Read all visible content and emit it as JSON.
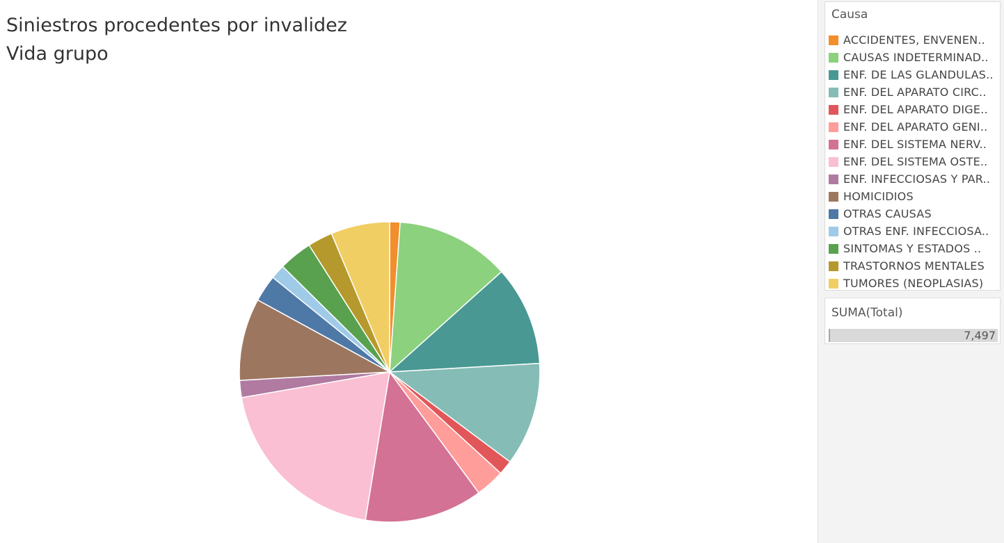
{
  "title": {
    "line1": "Siniestros procedentes por invalidez",
    "line2": "Vida grupo"
  },
  "legend": {
    "title": "Causa"
  },
  "sum_filter": {
    "title": "SUMA(Total)",
    "value": "7,497",
    "fill_fraction": 1.0
  },
  "chart_data": {
    "type": "pie",
    "title": "Siniestros procedentes por invalidez\nVida grupo",
    "total": 7497,
    "legend_position": "right",
    "slices": [
      {
        "label": "ACCIDENTES, ENVENEN..",
        "color": "#f28e2b",
        "value": 84
      },
      {
        "label": "CAUSAS INDETERMINAD..",
        "color": "#8cd17d",
        "value": 918
      },
      {
        "label": "ENF. DE LAS GLANDULAS..",
        "color": "#499894",
        "value": 804
      },
      {
        "label": "ENF. DEL APARATO CIRC..",
        "color": "#86bcb6",
        "value": 834
      },
      {
        "label": "ENF. DEL APARATO DIGE..",
        "color": "#e15759",
        "value": 117
      },
      {
        "label": "ENF. DEL APARATO GENI..",
        "color": "#ff9d9a",
        "value": 234
      },
      {
        "label": "ENF. DEL SISTEMA NERV..",
        "color": "#d37295",
        "value": 951
      },
      {
        "label": "ENF. DEL SISTEMA OSTE..",
        "color": "#fabfd2",
        "value": 1476
      },
      {
        "label": "ENF. INFECCIOSAS Y PAR..",
        "color": "#b07aa1",
        "value": 138
      },
      {
        "label": "HOMICIDIOS",
        "color": "#9d7660",
        "value": 663
      },
      {
        "label": "OTRAS CAUSAS",
        "color": "#4e79a7",
        "value": 216
      },
      {
        "label": "OTRAS ENF. INFECCIOSA..",
        "color": "#a0cbe8",
        "value": 117
      },
      {
        "label": "SINTOMAS Y ESTADOS ..",
        "color": "#59a14f",
        "value": 270
      },
      {
        "label": "TRASTORNOS MENTALES",
        "color": "#b6992d",
        "value": 201
      },
      {
        "label": "TUMORES (NEOPLASIAS)",
        "color": "#f1ce63",
        "value": 474
      }
    ]
  }
}
